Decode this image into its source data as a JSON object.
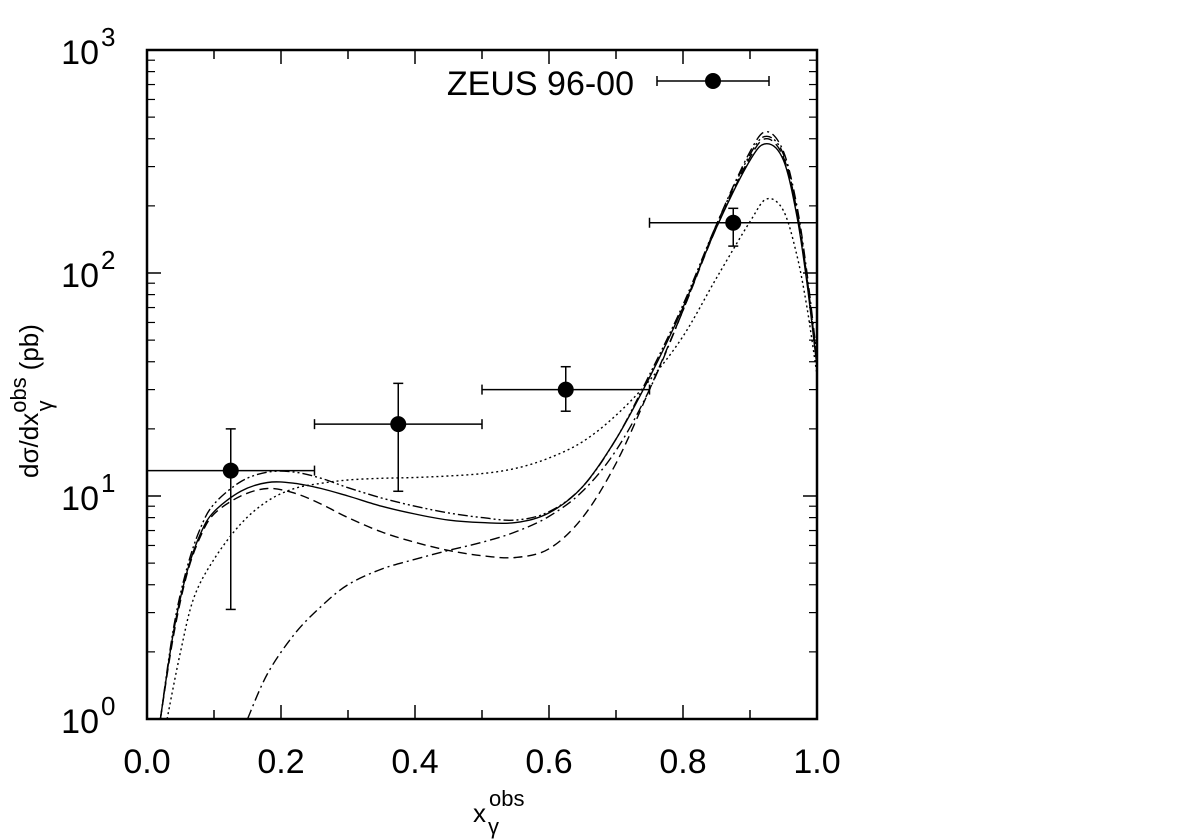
{
  "chart_data": {
    "type": "scatter",
    "title": "",
    "xlabel": "x",
    "xlabel_sub": "γ",
    "xlabel_sup": "obs",
    "ylabel": "dσ/dx",
    "ylabel_sub": "γ",
    "ylabel_sup": "obs",
    "ylabel_unit": "(pb)",
    "xlim": [
      0.0,
      1.0
    ],
    "ylim": [
      1,
      1000
    ],
    "yscale": "log",
    "x_tick_labels": [
      "0.0",
      "0.2",
      "0.4",
      "0.6",
      "0.8",
      "1.0"
    ],
    "x_tick_values": [
      0.0,
      0.2,
      0.4,
      0.6,
      0.8,
      1.0
    ],
    "y_tick_labels": [
      {
        "base": "10",
        "exp": "0",
        "value": 1
      },
      {
        "base": "10",
        "exp": "1",
        "value": 10
      },
      {
        "base": "10",
        "exp": "2",
        "value": 100
      },
      {
        "base": "10",
        "exp": "3",
        "value": 1000
      }
    ],
    "legend": {
      "label": "ZEUS 96-00",
      "placement": "top-right"
    },
    "data_points": [
      {
        "x": 0.125,
        "y": 13.0,
        "xlo": 0.0,
        "xhi": 0.25,
        "ylo": 3.1,
        "yhi": 20.0
      },
      {
        "x": 0.375,
        "y": 21.0,
        "xlo": 0.25,
        "xhi": 0.5,
        "ylo": 10.5,
        "yhi": 32.0
      },
      {
        "x": 0.625,
        "y": 30.0,
        "xlo": 0.5,
        "xhi": 0.75,
        "ylo": 24.0,
        "yhi": 38.0
      },
      {
        "x": 0.875,
        "y": 168.0,
        "xlo": 0.75,
        "xhi": 1.0,
        "ylo": 132.0,
        "yhi": 195.0
      }
    ],
    "series": [
      {
        "style": "solid",
        "points": [
          [
            0.02,
            1.0
          ],
          [
            0.04,
            2.5
          ],
          [
            0.06,
            4.6
          ],
          [
            0.08,
            6.8
          ],
          [
            0.1,
            8.5
          ],
          [
            0.14,
            10.5
          ],
          [
            0.18,
            11.5
          ],
          [
            0.22,
            11.4
          ],
          [
            0.26,
            10.8
          ],
          [
            0.3,
            10.0
          ],
          [
            0.35,
            9.0
          ],
          [
            0.4,
            8.3
          ],
          [
            0.45,
            7.8
          ],
          [
            0.5,
            7.6
          ],
          [
            0.55,
            7.6
          ],
          [
            0.6,
            8.4
          ],
          [
            0.65,
            11.0
          ],
          [
            0.7,
            18.0
          ],
          [
            0.75,
            34.0
          ],
          [
            0.8,
            70.0
          ],
          [
            0.85,
            160.0
          ],
          [
            0.9,
            320.0
          ],
          [
            0.925,
            380.0
          ],
          [
            0.95,
            320.0
          ],
          [
            0.97,
            180.0
          ],
          [
            0.985,
            90.0
          ],
          [
            1.0,
            38.0
          ]
        ]
      },
      {
        "style": "dashed",
        "points": [
          [
            0.02,
            1.0
          ],
          [
            0.04,
            2.4
          ],
          [
            0.06,
            4.5
          ],
          [
            0.08,
            6.6
          ],
          [
            0.1,
            8.3
          ],
          [
            0.14,
            10.0
          ],
          [
            0.18,
            10.8
          ],
          [
            0.22,
            10.3
          ],
          [
            0.26,
            9.2
          ],
          [
            0.3,
            8.0
          ],
          [
            0.35,
            6.9
          ],
          [
            0.4,
            6.2
          ],
          [
            0.45,
            5.7
          ],
          [
            0.5,
            5.4
          ],
          [
            0.55,
            5.3
          ],
          [
            0.6,
            5.8
          ],
          [
            0.65,
            8.0
          ],
          [
            0.7,
            14.0
          ],
          [
            0.75,
            30.0
          ],
          [
            0.8,
            68.0
          ],
          [
            0.85,
            160.0
          ],
          [
            0.9,
            330.0
          ],
          [
            0.925,
            400.0
          ],
          [
            0.95,
            330.0
          ],
          [
            0.97,
            190.0
          ],
          [
            0.985,
            95.0
          ],
          [
            1.0,
            40.0
          ]
        ]
      },
      {
        "style": "dotted",
        "points": [
          [
            0.03,
            1.0
          ],
          [
            0.05,
            2.0
          ],
          [
            0.07,
            3.5
          ],
          [
            0.1,
            5.2
          ],
          [
            0.14,
            7.5
          ],
          [
            0.18,
            9.5
          ],
          [
            0.22,
            10.8
          ],
          [
            0.26,
            11.4
          ],
          [
            0.3,
            11.8
          ],
          [
            0.35,
            12.0
          ],
          [
            0.4,
            12.1
          ],
          [
            0.45,
            12.3
          ],
          [
            0.5,
            12.6
          ],
          [
            0.55,
            13.3
          ],
          [
            0.6,
            14.8
          ],
          [
            0.65,
            17.5
          ],
          [
            0.7,
            23.0
          ],
          [
            0.75,
            33.0
          ],
          [
            0.8,
            52.0
          ],
          [
            0.85,
            95.0
          ],
          [
            0.9,
            170.0
          ],
          [
            0.925,
            215.0
          ],
          [
            0.95,
            190.0
          ],
          [
            0.97,
            120.0
          ],
          [
            0.985,
            70.0
          ],
          [
            1.0,
            35.0
          ]
        ]
      },
      {
        "style": "dashdot",
        "points": [
          [
            0.15,
            1.0
          ],
          [
            0.18,
            1.6
          ],
          [
            0.22,
            2.4
          ],
          [
            0.26,
            3.2
          ],
          [
            0.3,
            4.0
          ],
          [
            0.35,
            4.7
          ],
          [
            0.4,
            5.2
          ],
          [
            0.45,
            5.7
          ],
          [
            0.5,
            6.2
          ],
          [
            0.55,
            6.9
          ],
          [
            0.6,
            8.1
          ],
          [
            0.65,
            10.5
          ],
          [
            0.7,
            16.0
          ],
          [
            0.75,
            30.0
          ],
          [
            0.8,
            68.0
          ],
          [
            0.85,
            165.0
          ],
          [
            0.9,
            350.0
          ],
          [
            0.925,
            430.0
          ],
          [
            0.95,
            350.0
          ],
          [
            0.97,
            200.0
          ],
          [
            0.985,
            100.0
          ],
          [
            1.0,
            42.0
          ]
        ]
      },
      {
        "style": "dashdotdot",
        "points": [
          [
            0.02,
            1.0
          ],
          [
            0.04,
            2.6
          ],
          [
            0.06,
            4.8
          ],
          [
            0.08,
            7.2
          ],
          [
            0.1,
            9.2
          ],
          [
            0.14,
            11.6
          ],
          [
            0.18,
            12.8
          ],
          [
            0.22,
            12.8
          ],
          [
            0.26,
            12.0
          ],
          [
            0.3,
            10.9
          ],
          [
            0.35,
            9.8
          ],
          [
            0.4,
            9.0
          ],
          [
            0.45,
            8.4
          ],
          [
            0.5,
            8.0
          ],
          [
            0.55,
            7.8
          ],
          [
            0.6,
            8.5
          ],
          [
            0.65,
            11.0
          ],
          [
            0.7,
            18.0
          ],
          [
            0.75,
            35.0
          ],
          [
            0.8,
            72.0
          ],
          [
            0.85,
            165.0
          ],
          [
            0.9,
            340.0
          ],
          [
            0.925,
            410.0
          ],
          [
            0.95,
            340.0
          ],
          [
            0.97,
            190.0
          ],
          [
            0.985,
            95.0
          ],
          [
            1.0,
            40.0
          ]
        ]
      }
    ]
  }
}
